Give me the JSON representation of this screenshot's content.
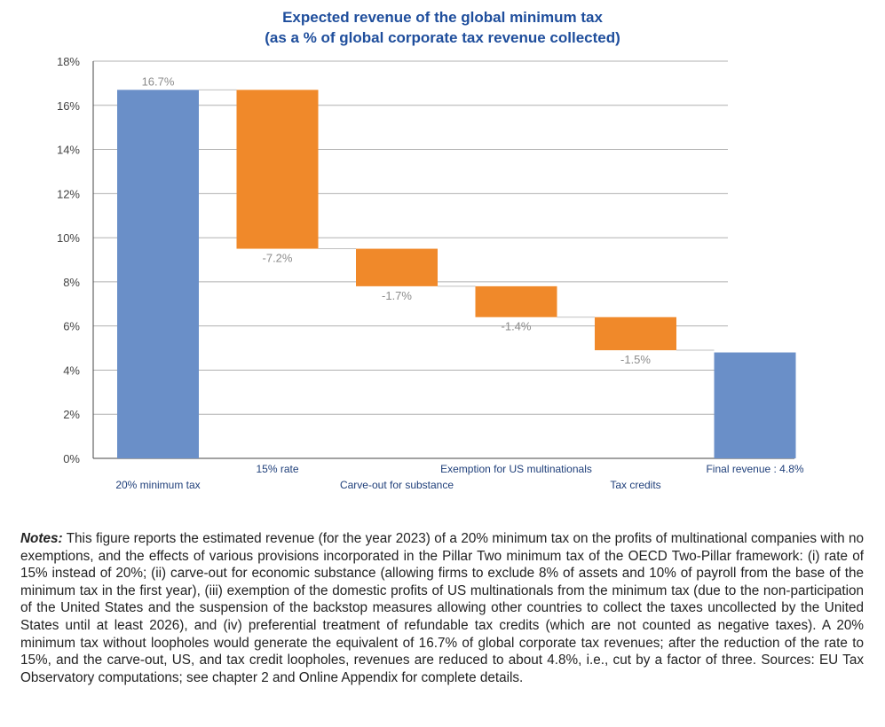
{
  "chart_data": {
    "type": "waterfall",
    "title": "Expected revenue of the global minimum tax",
    "subtitle": "(as a % of global corporate tax revenue collected)",
    "ylim": [
      0,
      18
    ],
    "yticks": [
      "0%",
      "2%",
      "4%",
      "6%",
      "8%",
      "10%",
      "12%",
      "14%",
      "16%",
      "18%"
    ],
    "ytick_values": [
      0,
      2,
      4,
      6,
      8,
      10,
      12,
      14,
      16,
      18
    ],
    "grid": true,
    "categories": [
      "20% minimum tax",
      "15% rate",
      "Carve-out for substance",
      "Exemption for US multinationals",
      "Tax credits",
      "Final revenue : 4.8%"
    ],
    "values": [
      16.7,
      -7.2,
      -1.7,
      -1.4,
      -1.5,
      4.8
    ],
    "kinds": [
      "total",
      "change",
      "change",
      "change",
      "change",
      "total"
    ],
    "data_labels": [
      "16.7%",
      "-7.2%",
      "-1.7%",
      "-1.4%",
      "-1.5%",
      ""
    ],
    "colors": {
      "total": "#6a8fc8",
      "change": "#f0892a",
      "connector": "#bfbfbf",
      "label": "#8c8c8c"
    }
  },
  "notes": {
    "lead": "Notes:",
    "text": " This figure reports the estimated revenue (for the year 2023) of a 20% minimum tax on the profits of multinational companies with no exemptions, and the effects of various provisions incorporated in the Pillar Two minimum tax of the OECD Two-Pillar framework: (i) rate of 15% instead of 20%; (ii) carve-out for economic substance (allowing firms to exclude 8% of assets and 10% of payroll from the base of the minimum tax in the first year), (iii) exemption of the domestic profits of US multinationals from the minimum tax (due to the non-participation of the United States and the suspension of the backstop measures allowing other countries to collect the taxes uncollected by the United States until at least 2026), and (iv) preferential treatment of refundable tax credits (which are not counted as negative taxes). A 20% minimum tax without loopholes would generate the equivalent of 16.7% of global corporate tax revenues; after the reduction of the rate to 15%, and the carve-out, US, and tax credit loopholes, revenues are reduced to about 4.8%, i.e., cut by a factor of three. Sources: EU Tax Observatory computations; see chapter 2 and Online Appendix for complete details."
  }
}
